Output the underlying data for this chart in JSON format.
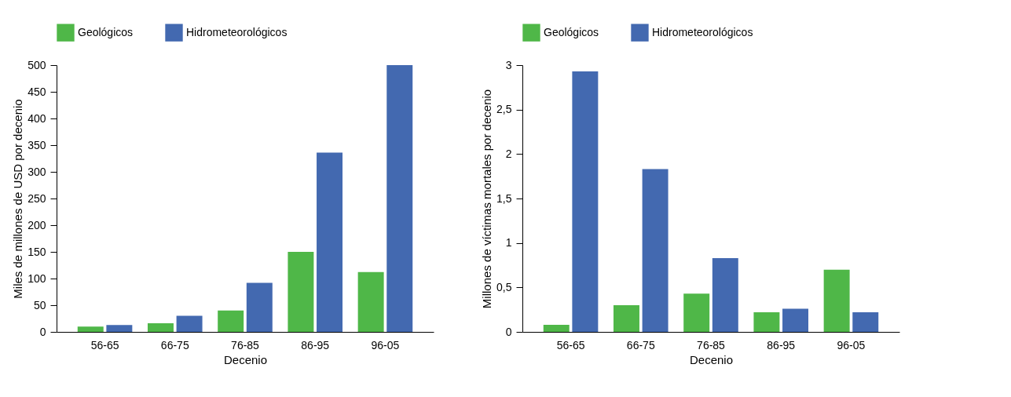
{
  "chart_data": [
    {
      "type": "bar",
      "categories": [
        "56-65",
        "66-75",
        "76-85",
        "86-95",
        "96-05"
      ],
      "xlabel": "Decenio",
      "ylabel": "Miles de millones de USD por decenio",
      "ylim": [
        0,
        500
      ],
      "yticks": [
        0,
        50,
        100,
        150,
        200,
        250,
        300,
        350,
        400,
        450,
        500
      ],
      "grid": false,
      "legend": "top left",
      "series": [
        {
          "name": "Geológicos",
          "color": "#4fb748",
          "values": [
            10,
            16,
            40,
            150,
            112
          ]
        },
        {
          "name": "Hidrometeorológicos",
          "color": "#4369b0",
          "values": [
            13,
            30,
            92,
            336,
            500
          ]
        }
      ]
    },
    {
      "type": "bar",
      "categories": [
        "56-65",
        "66-75",
        "76-85",
        "86-95",
        "96-05"
      ],
      "xlabel": "Decenio",
      "ylabel": "Millones de víctimas mortales por decenio",
      "ylim": [
        0,
        3
      ],
      "yticks": [
        0,
        {
          "value": 0.5,
          "label": "0,5"
        },
        1,
        {
          "value": 1.5,
          "label": "1,5"
        },
        2,
        {
          "value": 2.5,
          "label": "2,5"
        },
        3
      ],
      "grid": false,
      "legend": "top left",
      "series": [
        {
          "name": "Geológicos",
          "color": "#4fb748",
          "values": [
            0.08,
            0.3,
            0.43,
            0.22,
            0.7
          ]
        },
        {
          "name": "Hidrometeorológicos",
          "color": "#4369b0",
          "values": [
            2.93,
            1.83,
            0.83,
            0.26,
            0.22
          ]
        }
      ]
    }
  ]
}
